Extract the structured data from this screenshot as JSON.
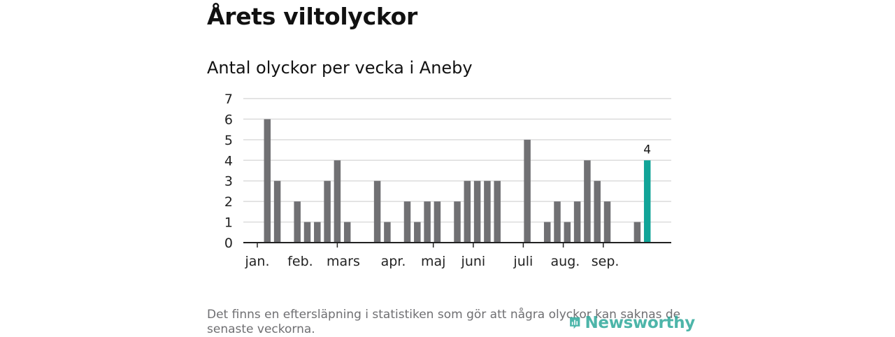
{
  "header": {
    "title": "Årets viltolyckor",
    "subtitle": "Antal olyckor per vecka i Aneby"
  },
  "footer": {
    "note": "Det finns en eftersläpning i statistiken som gör att några olyckor kan saknas de senaste veckorna.",
    "brand": "Newsworthy"
  },
  "colors": {
    "bar": "#707073",
    "highlight": "#11a498",
    "grid": "#dcdcdc",
    "axis": "#222222",
    "brand": "#2ea99b"
  },
  "chart_data": {
    "type": "bar",
    "title": "Antal olyckor per vecka i Aneby",
    "xlabel": "",
    "ylabel": "",
    "ylim": [
      0,
      7
    ],
    "yticks": [
      "0",
      "1",
      "2",
      "3",
      "4",
      "5",
      "6",
      "7"
    ],
    "x": [
      1,
      2,
      3,
      4,
      5,
      6,
      7,
      8,
      9,
      10,
      11,
      12,
      13,
      14,
      15,
      16,
      17,
      18,
      19,
      20,
      21,
      22,
      23,
      24,
      25,
      26,
      27,
      28,
      29,
      30,
      31,
      32,
      33,
      34,
      35,
      36,
      37,
      38,
      39,
      40
    ],
    "values": [
      0,
      6,
      3,
      0,
      2,
      1,
      1,
      3,
      4,
      1,
      0,
      0,
      3,
      1,
      0,
      2,
      1,
      2,
      2,
      0,
      2,
      3,
      3,
      3,
      3,
      0,
      0,
      5,
      0,
      1,
      2,
      1,
      2,
      4,
      3,
      2,
      0,
      0,
      1,
      4
    ],
    "highlight_index": 39,
    "highlight_label": "4",
    "month_labels": [
      {
        "label": "jan.",
        "week": 1.0
      },
      {
        "label": "feb.",
        "week": 5.3
      },
      {
        "label": "mars",
        "week": 9.6
      },
      {
        "label": "apr.",
        "week": 14.6
      },
      {
        "label": "maj",
        "week": 18.6
      },
      {
        "label": "juni",
        "week": 22.6
      },
      {
        "label": "juli",
        "week": 27.6
      },
      {
        "label": "aug.",
        "week": 31.8
      },
      {
        "label": "sep.",
        "week": 35.8
      }
    ],
    "month_ticks": [
      1.0,
      9.0,
      18.6,
      22.6,
      27.6,
      31.6,
      35.6
    ]
  }
}
